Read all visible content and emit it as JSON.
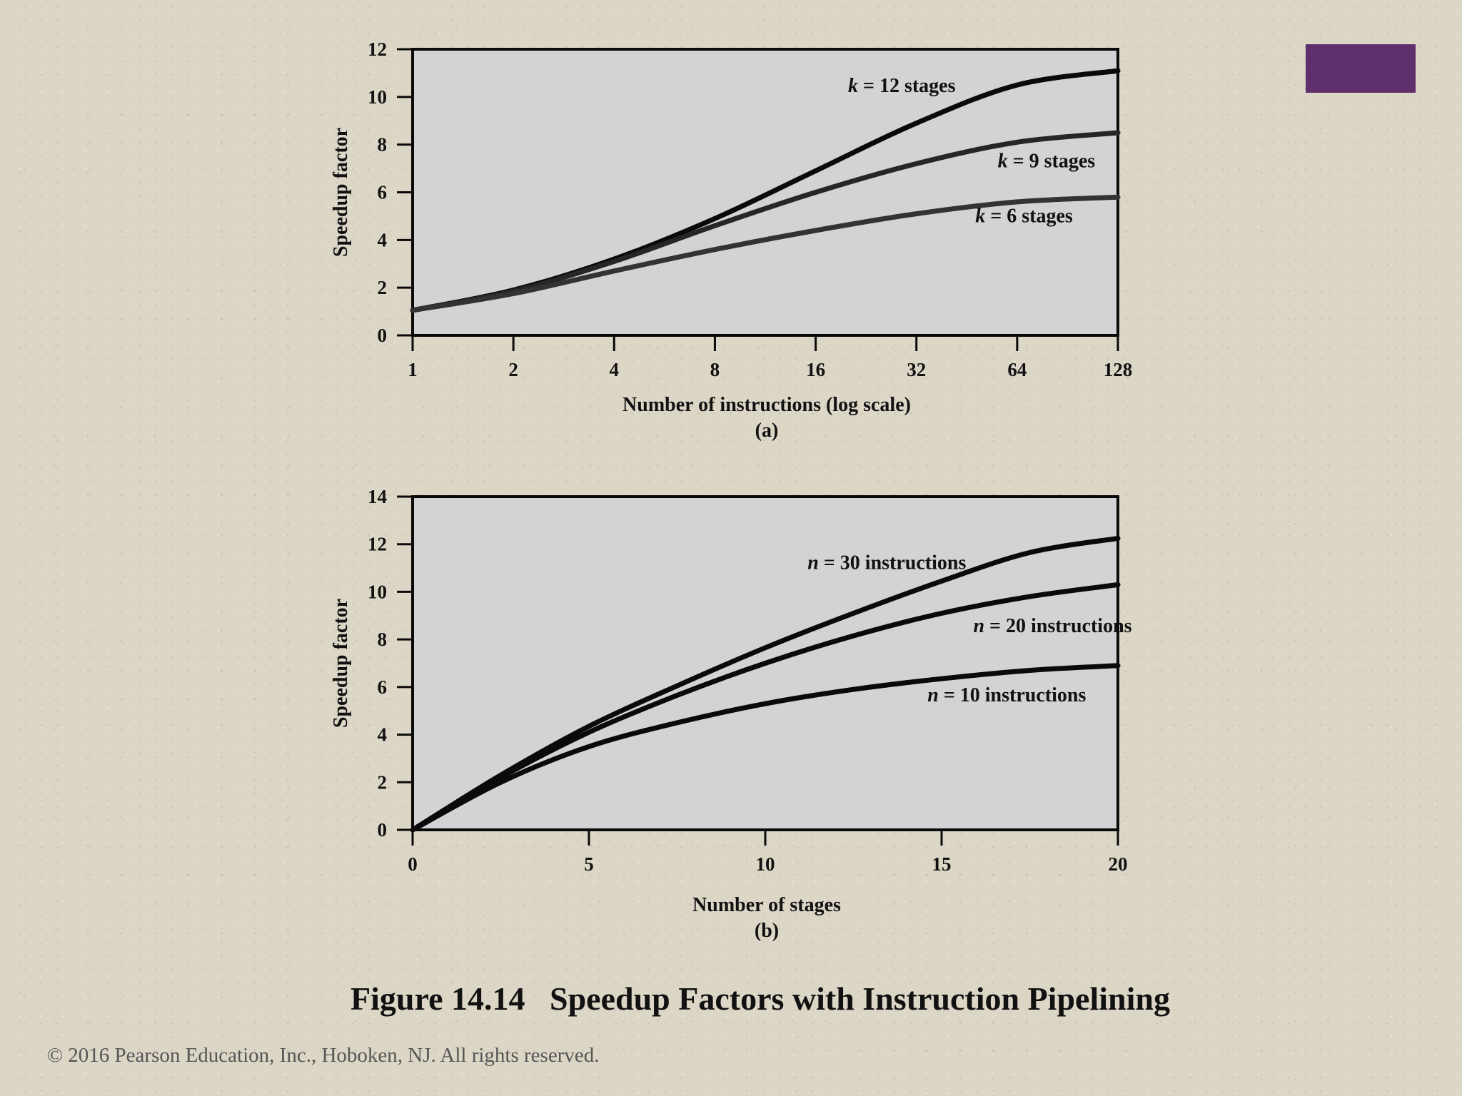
{
  "accent_color": "#5e2f6b",
  "chart_data": [
    {
      "type": "line",
      "panel_label": "(a)",
      "xlabel": "Number of instructions (log scale)",
      "ylabel": "Speedup factor",
      "x_scale": "log2",
      "x_ticks": [
        1,
        2,
        4,
        8,
        16,
        32,
        64,
        128
      ],
      "x_tick_labels": [
        "1",
        "2",
        "4",
        "8",
        "16",
        "32",
        "64",
        "128"
      ],
      "xlim": [
        1,
        128
      ],
      "y_ticks": [
        0,
        2,
        4,
        6,
        8,
        10,
        12
      ],
      "y_tick_labels": [
        "0",
        "2",
        "4",
        "6",
        "8",
        "10",
        "12"
      ],
      "ylim": [
        0,
        12
      ],
      "x": [
        1,
        2,
        4,
        8,
        16,
        32,
        64,
        128
      ],
      "series": [
        {
          "name": "k = 12 stages",
          "var": "k",
          "rest": " = 12 stages",
          "values": [
            1.05,
            1.9,
            3.2,
            4.9,
            6.9,
            8.9,
            10.5,
            11.1
          ],
          "color": "#0a0a0a",
          "label_x": 20,
          "label_y": 10.2
        },
        {
          "name": "k = 9 stages",
          "var": "k",
          "rest": " = 9 stages",
          "values": [
            1.05,
            1.85,
            3.1,
            4.6,
            6.0,
            7.2,
            8.1,
            8.5
          ],
          "color": "#262626",
          "label_x": 56,
          "label_y": 7.05
        },
        {
          "name": "k = 6 stages",
          "var": "k",
          "rest": " = 6 stages",
          "values": [
            1.05,
            1.75,
            2.7,
            3.6,
            4.4,
            5.1,
            5.6,
            5.8
          ],
          "color": "#333333",
          "label_x": 48,
          "label_y": 4.75
        }
      ]
    },
    {
      "type": "line",
      "panel_label": "(b)",
      "xlabel": "Number of stages",
      "ylabel": "Speedup factor",
      "x_scale": "linear",
      "x_ticks": [
        0,
        5,
        10,
        15,
        20
      ],
      "x_tick_labels": [
        "0",
        "5",
        "10",
        "15",
        "20"
      ],
      "xlim": [
        0,
        20
      ],
      "y_ticks": [
        0,
        2,
        4,
        6,
        8,
        10,
        12,
        14
      ],
      "y_tick_labels": [
        "0",
        "2",
        "4",
        "6",
        "8",
        "10",
        "12",
        "14"
      ],
      "ylim": [
        0,
        14
      ],
      "x": [
        0,
        2.5,
        5,
        7.5,
        10,
        12.5,
        15,
        17.5,
        20
      ],
      "series": [
        {
          "name": "n = 30 instructions",
          "var": "n",
          "rest": " = 30 instructions",
          "values": [
            0,
            2.3,
            4.35,
            6.05,
            7.65,
            9.1,
            10.45,
            11.65,
            12.25
          ],
          "color": "#0a0a0a",
          "label_x": 11.2,
          "label_y": 10.95
        },
        {
          "name": "n = 20 instructions",
          "var": "n",
          "rest": " = 20 instructions",
          "values": [
            0,
            2.2,
            4.1,
            5.65,
            7.0,
            8.15,
            9.1,
            9.8,
            10.3
          ],
          "color": "#0a0a0a",
          "label_x": 15.9,
          "label_y": 8.3
        },
        {
          "name": "n = 10 instructions",
          "var": "n",
          "rest": " = 10 instructions",
          "values": [
            0,
            2.0,
            3.5,
            4.5,
            5.3,
            5.9,
            6.35,
            6.7,
            6.9
          ],
          "color": "#0a0a0a",
          "label_x": 14.6,
          "label_y": 5.4
        }
      ]
    }
  ],
  "caption": "Figure 14.14   Speedup Factors with Instruction Pipelining",
  "copyright": "© 2016 Pearson Education, Inc., Hoboken, NJ. All rights reserved."
}
